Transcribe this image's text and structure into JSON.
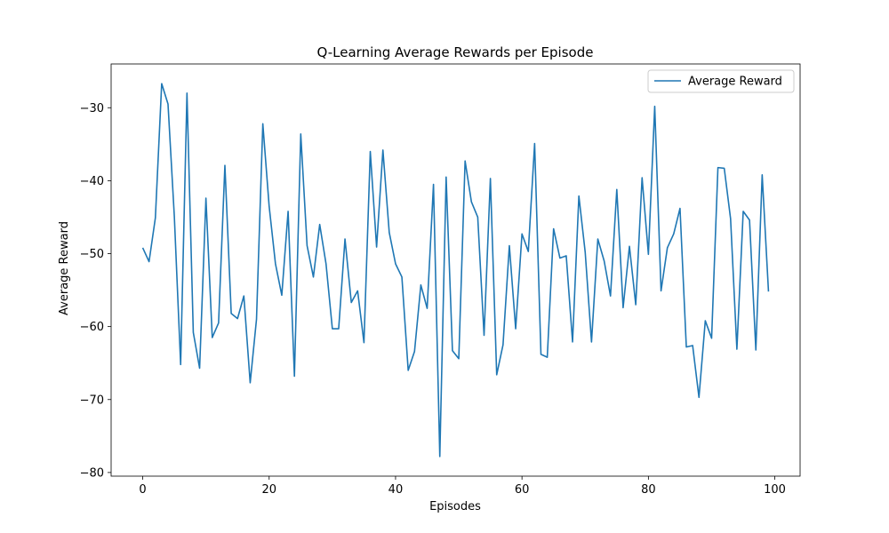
{
  "chart_data": {
    "type": "line",
    "title": "Q-Learning Average Rewards per Episode",
    "xlabel": "Episodes",
    "ylabel": "Average Reward",
    "xlim": [
      -5,
      104
    ],
    "ylim": [
      -80.5,
      -24
    ],
    "xticks": [
      0,
      20,
      40,
      60,
      80,
      100
    ],
    "xtick_labels": [
      "0",
      "20",
      "40",
      "60",
      "80",
      "100"
    ],
    "yticks": [
      -80,
      -70,
      -60,
      -50,
      -40,
      -30
    ],
    "ytick_labels": [
      "−80",
      "−70",
      "−60",
      "−50",
      "−40",
      "−30"
    ],
    "grid": false,
    "legend": {
      "position": "top-right",
      "entries": [
        "Average Reward"
      ]
    },
    "series": [
      {
        "name": "Average Reward",
        "color": "#1f77b4",
        "x": [
          0,
          1,
          2,
          3,
          4,
          5,
          6,
          7,
          8,
          9,
          10,
          11,
          12,
          13,
          14,
          15,
          16,
          17,
          18,
          19,
          20,
          21,
          22,
          23,
          24,
          25,
          26,
          27,
          28,
          29,
          30,
          31,
          32,
          33,
          34,
          35,
          36,
          37,
          38,
          39,
          40,
          41,
          42,
          43,
          44,
          45,
          46,
          47,
          48,
          49,
          50,
          51,
          52,
          53,
          54,
          55,
          56,
          57,
          58,
          59,
          60,
          61,
          62,
          63,
          64,
          65,
          66,
          67,
          68,
          69,
          70,
          71,
          72,
          73,
          74,
          75,
          76,
          77,
          78,
          79,
          80,
          81,
          82,
          83,
          84,
          85,
          86,
          87,
          88,
          89,
          90,
          91,
          92,
          93,
          94,
          95,
          96,
          97,
          98,
          99
        ],
        "values": [
          -49.2,
          -51.1,
          -45.1,
          -26.7,
          -29.5,
          -44.9,
          -65.2,
          -28.0,
          -60.8,
          -65.7,
          -42.4,
          -61.5,
          -59.5,
          -37.9,
          -58.2,
          -58.9,
          -55.8,
          -67.7,
          -59.0,
          -32.2,
          -43.5,
          -51.4,
          -55.7,
          -44.2,
          -66.8,
          -33.6,
          -48.9,
          -53.2,
          -46.0,
          -51.4,
          -60.3,
          -60.3,
          -48.0,
          -56.7,
          -55.1,
          -62.2,
          -36.0,
          -49.1,
          -35.8,
          -47.1,
          -51.4,
          -53.2,
          -66.0,
          -63.4,
          -54.3,
          -57.5,
          -40.5,
          -77.8,
          -39.5,
          -63.3,
          -64.4,
          -37.3,
          -42.9,
          -45.0,
          -61.2,
          -39.7,
          -66.6,
          -62.5,
          -48.9,
          -60.3,
          -47.3,
          -49.7,
          -34.9,
          -63.8,
          -64.2,
          -46.6,
          -50.6,
          -50.3,
          -62.1,
          -42.1,
          -49.8,
          -62.1,
          -48.0,
          -51.0,
          -55.8,
          -41.2,
          -57.4,
          -49.0,
          -57.0,
          -39.6,
          -50.1,
          -29.8,
          -55.1,
          -49.2,
          -47.3,
          -43.8,
          -62.8,
          -62.6,
          -69.7,
          -59.2,
          -61.6,
          -38.2,
          -38.3,
          -45.2,
          -63.1,
          -44.2,
          -45.4,
          -63.2,
          -39.2,
          -55.2
        ]
      }
    ]
  }
}
